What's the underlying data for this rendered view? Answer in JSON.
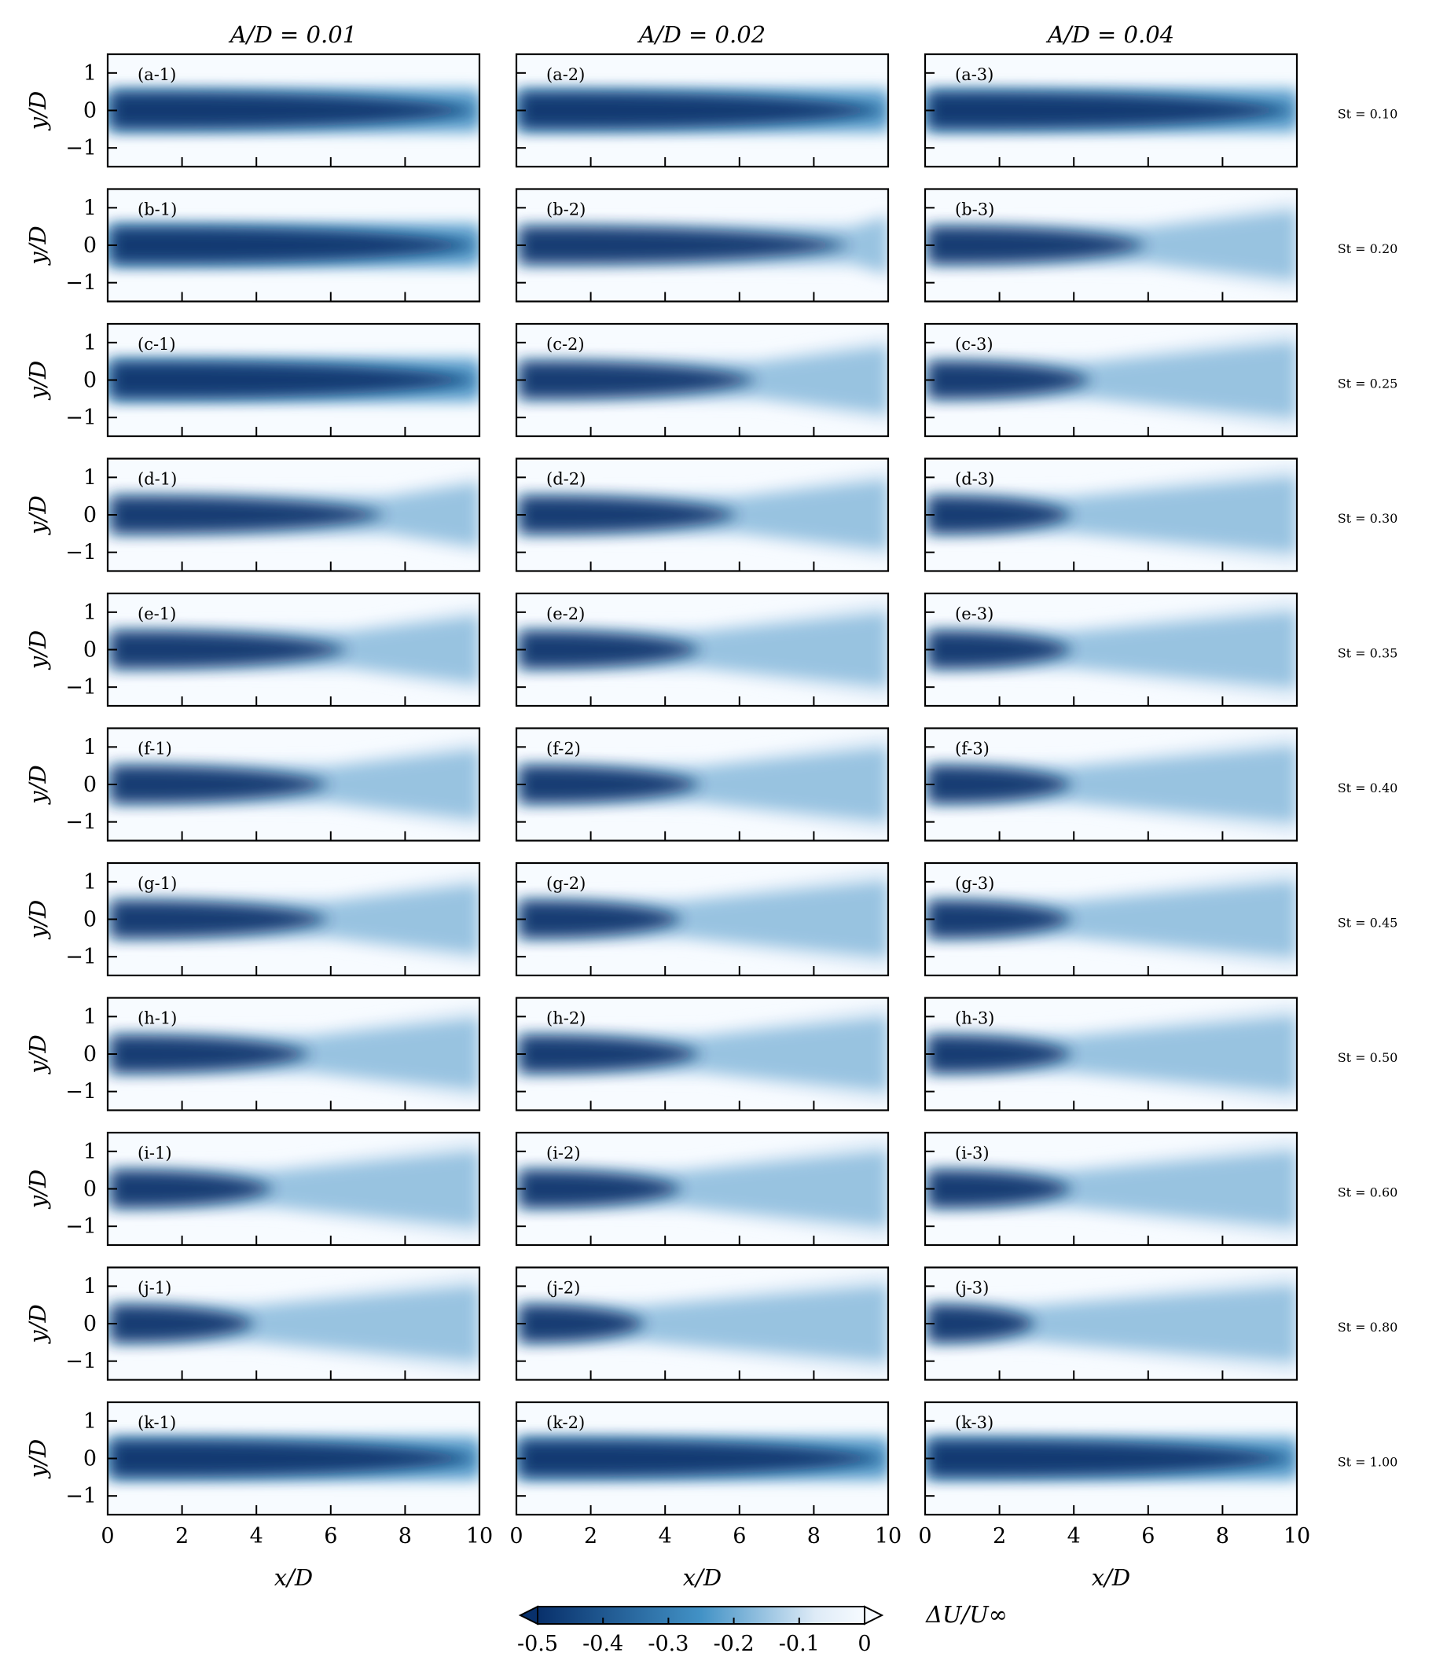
{
  "chart_data": {
    "type": "heatmap",
    "description_of_layout": "grid",
    "rows": 11,
    "cols": 3,
    "column_titles": [
      "A/D = 0.01",
      "A/D = 0.02",
      "A/D = 0.04"
    ],
    "row_titles": [
      "St = 0.10",
      "St = 0.20",
      "St = 0.25",
      "St = 0.30",
      "St = 0.35",
      "St = 0.40",
      "St = 0.45",
      "St = 0.50",
      "St = 0.60",
      "St = 0.80",
      "St = 1.00"
    ],
    "panel_labels": [
      [
        "(a-1)",
        "(a-2)",
        "(a-3)"
      ],
      [
        "(b-1)",
        "(b-2)",
        "(b-3)"
      ],
      [
        "(c-1)",
        "(c-2)",
        "(c-3)"
      ],
      [
        "(d-1)",
        "(d-2)",
        "(d-3)"
      ],
      [
        "(e-1)",
        "(e-2)",
        "(e-3)"
      ],
      [
        "(f-1)",
        "(f-2)",
        "(f-3)"
      ],
      [
        "(g-1)",
        "(g-2)",
        "(g-3)"
      ],
      [
        "(h-1)",
        "(h-2)",
        "(h-3)"
      ],
      [
        "(i-1)",
        "(i-2)",
        "(i-3)"
      ],
      [
        "(j-1)",
        "(j-2)",
        "(j-3)"
      ],
      [
        "(k-1)",
        "(k-2)",
        "(k-3)"
      ]
    ],
    "xlabel": "x/D",
    "ylabel": "y/D",
    "xlim": [
      0,
      10
    ],
    "ylim": [
      -1.5,
      1.5
    ],
    "x_ticks": [
      0,
      2,
      4,
      6,
      8,
      10
    ],
    "x_tick_labels": [
      "0",
      "2",
      "4",
      "6",
      "8",
      "10"
    ],
    "y_ticks": [
      -1,
      0,
      1
    ],
    "y_tick_labels": [
      "−1",
      "0",
      "1"
    ],
    "colorbar": {
      "label": "ΔU/U∞",
      "range": [
        -0.5,
        0
      ],
      "ticks": [
        -0.5,
        -0.4,
        -0.3,
        -0.2,
        -0.1,
        0
      ],
      "tick_labels": [
        "-0.5",
        "-0.4",
        "-0.3",
        "-0.2",
        "-0.1",
        "0"
      ],
      "colormap": "Blues_r",
      "extend": "both"
    },
    "wake_core_deficit": -0.5,
    "core_end_x": [
      [
        10,
        10,
        10
      ],
      [
        10,
        9,
        6
      ],
      [
        10,
        6.5,
        4.5
      ],
      [
        7.5,
        6,
        4
      ],
      [
        6.5,
        5,
        4
      ],
      [
        6,
        5,
        4
      ],
      [
        6,
        4.5,
        4
      ],
      [
        5.5,
        5,
        4
      ],
      [
        4.5,
        4.5,
        4
      ],
      [
        4,
        3.5,
        3
      ],
      [
        10,
        10,
        10
      ]
    ],
    "colors": {
      "dark": "#08306b",
      "mid": "#4292c6",
      "light": "#deebf7",
      "background": "#f7fbff"
    }
  }
}
